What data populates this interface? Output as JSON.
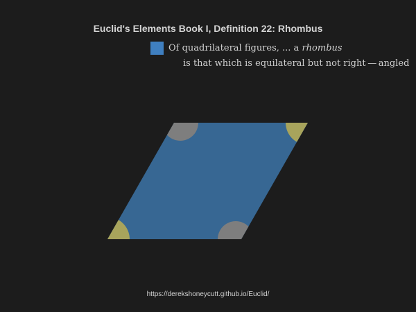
{
  "title": "Euclid's Elements Book I, Definition 22: Rhombus",
  "legend": {
    "line1_prefix": "Of quadrilateral figures, ... a ",
    "line1_italic": "rhombus",
    "line2": "is that which is equilateral but not right — angled"
  },
  "footer_url": "https://derekshoneycutt.github.io/Euclid/",
  "colors": {
    "background": "#1c1c1c",
    "rhombus_fill": "#376793",
    "swatch": "#3f7fc0",
    "acute_angle": "#a8a45c",
    "obtuse_angle": "#7e7e7e",
    "text": "#d4d4d4"
  }
}
